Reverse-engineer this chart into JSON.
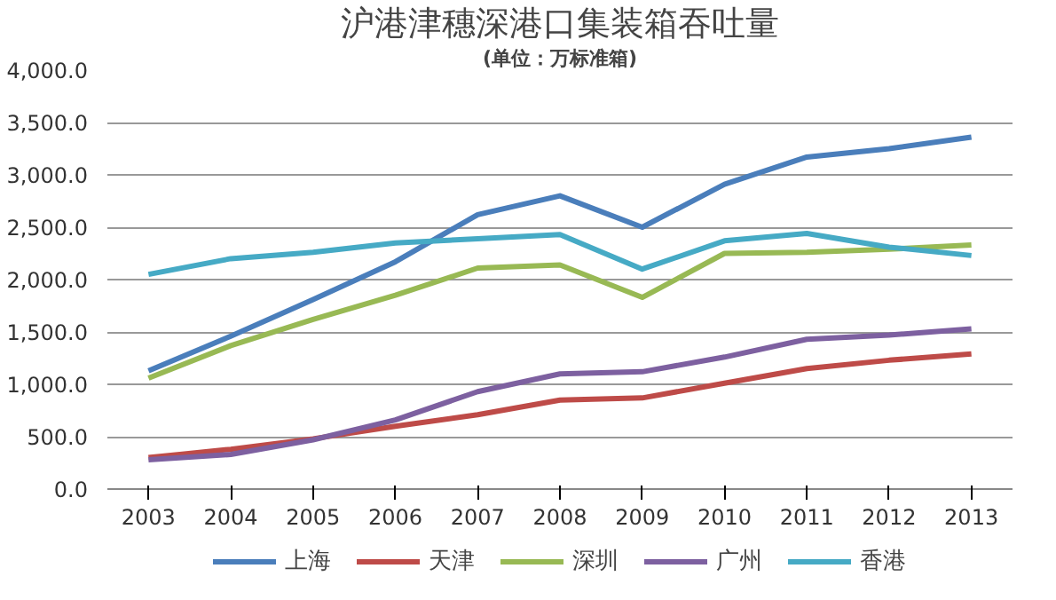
{
  "chart_data": {
    "type": "line",
    "title": "沪港津穗深港口集装箱吞吐量",
    "subtitle": "(单位：万标准箱)",
    "categories": [
      "2003",
      "2004",
      "2005",
      "2006",
      "2007",
      "2008",
      "2009",
      "2010",
      "2011",
      "2012",
      "2013"
    ],
    "series": [
      {
        "name": "上海",
        "color": "#4a7ebb",
        "values": [
          1130,
          1460,
          1810,
          2170,
          2620,
          2800,
          2500,
          2910,
          3170,
          3250,
          3360
        ]
      },
      {
        "name": "天津",
        "color": "#be4b48",
        "values": [
          300,
          380,
          480,
          600,
          710,
          850,
          870,
          1010,
          1150,
          1230,
          1290
        ]
      },
      {
        "name": "深圳",
        "color": "#98b954",
        "values": [
          1060,
          1370,
          1620,
          1850,
          2110,
          2140,
          1830,
          2250,
          2260,
          2290,
          2330
        ]
      },
      {
        "name": "广州",
        "color": "#7d60a0",
        "values": [
          280,
          330,
          470,
          660,
          930,
          1100,
          1120,
          1260,
          1430,
          1470,
          1530
        ]
      },
      {
        "name": "香港",
        "color": "#46aac5",
        "values": [
          2050,
          2200,
          2260,
          2350,
          2390,
          2430,
          2100,
          2370,
          2440,
          2310,
          2230
        ]
      }
    ],
    "ylim": [
      0,
      4000
    ],
    "yticks": [
      {
        "value": 0,
        "label": "0.0"
      },
      {
        "value": 500,
        "label": "500.0"
      },
      {
        "value": 1000,
        "label": "1,000.0"
      },
      {
        "value": 1500,
        "label": "1,500.0"
      },
      {
        "value": 2000,
        "label": "2,000.0"
      },
      {
        "value": 2500,
        "label": "2,500.0"
      },
      {
        "value": 3000,
        "label": "3,000.0"
      },
      {
        "value": 3500,
        "label": "3,500.0"
      },
      {
        "value": 4000,
        "label": "4,000.0"
      }
    ],
    "grid": "y",
    "legend": "bottom",
    "marker": "none",
    "line_style": "solid"
  }
}
